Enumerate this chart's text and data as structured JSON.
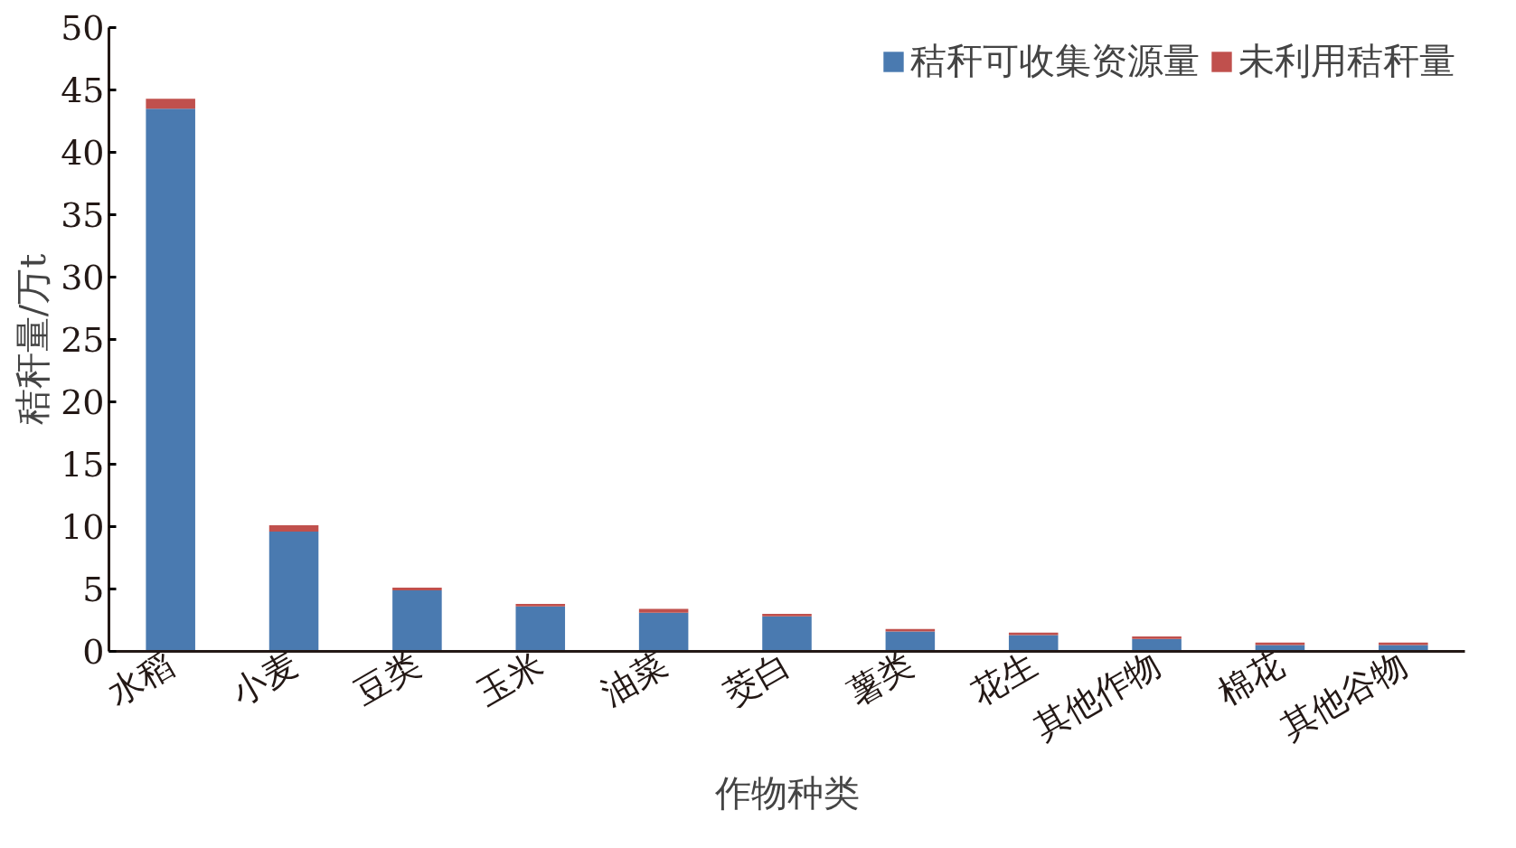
{
  "chart_data": {
    "type": "bar",
    "stacked": true,
    "xlabel": "作物种类",
    "ylabel": "秸秆量/万t",
    "categories": [
      "水稻",
      "小麦",
      "豆类",
      "玉米",
      "油菜",
      "茭白",
      "薯类",
      "花生",
      "其他作物",
      "棉花",
      "其他谷物"
    ],
    "series": [
      {
        "name": "秸秆可收集资源量",
        "color": "#4a7ab0",
        "values": [
          43.5,
          9.6,
          4.9,
          3.6,
          3.1,
          2.8,
          1.6,
          1.3,
          1.0,
          0.5,
          0.5
        ]
      },
      {
        "name": "未利用秸秆量",
        "color": "#c0504d",
        "values": [
          0.8,
          0.5,
          0.2,
          0.2,
          0.3,
          0.2,
          0.2,
          0.2,
          0.2,
          0.2,
          0.2
        ]
      }
    ],
    "ylim": [
      0,
      50
    ],
    "yticks": [
      0,
      5,
      10,
      15,
      20,
      25,
      30,
      35,
      40,
      45,
      50
    ],
    "grid": false,
    "legend": "top right"
  }
}
